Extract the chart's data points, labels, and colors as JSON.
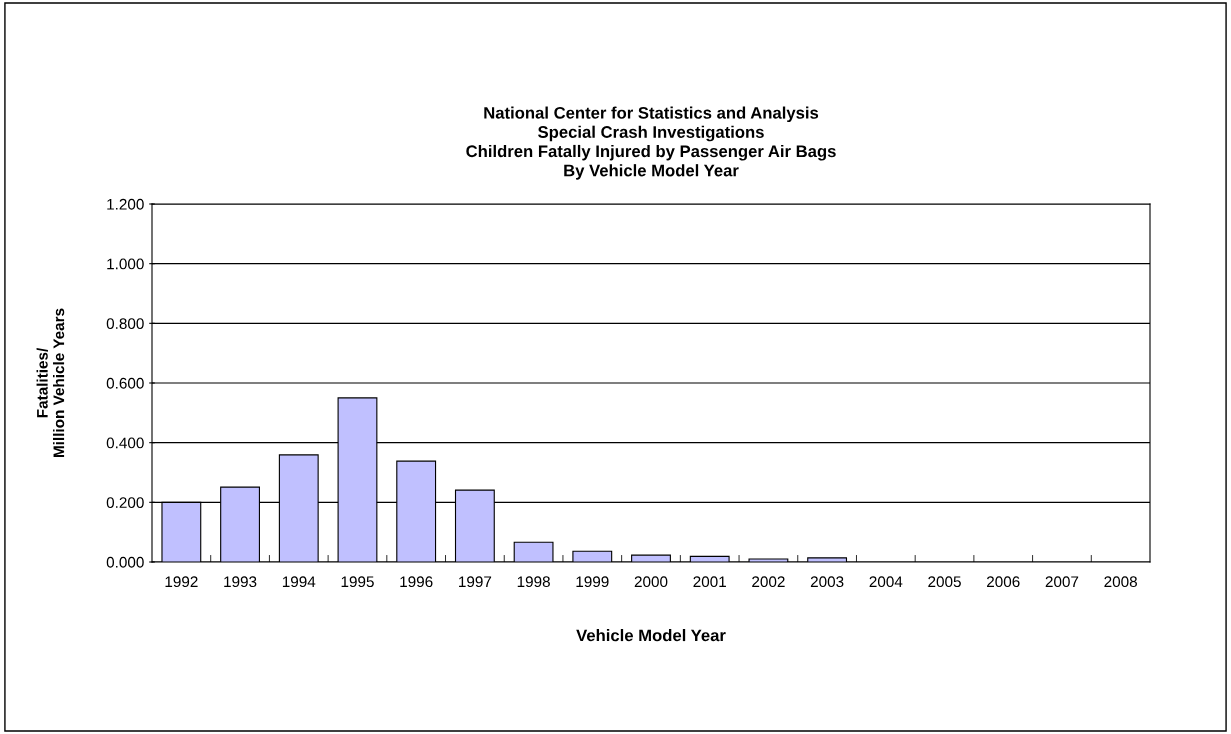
{
  "chart_data": {
    "type": "bar",
    "title": "National Center for Statistics and Analysis\nSpecial Crash Investigations\nChildren Fatally Injured by Passenger Air Bags\nBy Vehicle Model Year",
    "xlabel": "Vehicle Model Year",
    "ylabel": "Fatalities/\nMillion Vehicle Years",
    "categories": [
      "1992",
      "1993",
      "1994",
      "1995",
      "1996",
      "1997",
      "1998",
      "1999",
      "2000",
      "2001",
      "2002",
      "2003",
      "2004",
      "2005",
      "2006",
      "2007",
      "2008"
    ],
    "values": [
      0.2,
      0.251,
      0.359,
      0.55,
      0.338,
      0.241,
      0.066,
      0.036,
      0.023,
      0.019,
      0.01,
      0.014,
      0,
      0,
      0,
      0,
      0
    ],
    "color": "#c0c0ff",
    "ylim": [
      0,
      1.2
    ],
    "yticks": [
      {
        "value": 0,
        "label": "0.000"
      },
      {
        "value": 0.2,
        "label": "0.200"
      },
      {
        "value": 0.4,
        "label": "0.400"
      },
      {
        "value": 0.6,
        "label": "0.600"
      },
      {
        "value": 0.8,
        "label": "0.800"
      },
      {
        "value": 1.0,
        "label": "1.000"
      },
      {
        "value": 1.2,
        "label": "1.200"
      }
    ],
    "grid": "y"
  }
}
